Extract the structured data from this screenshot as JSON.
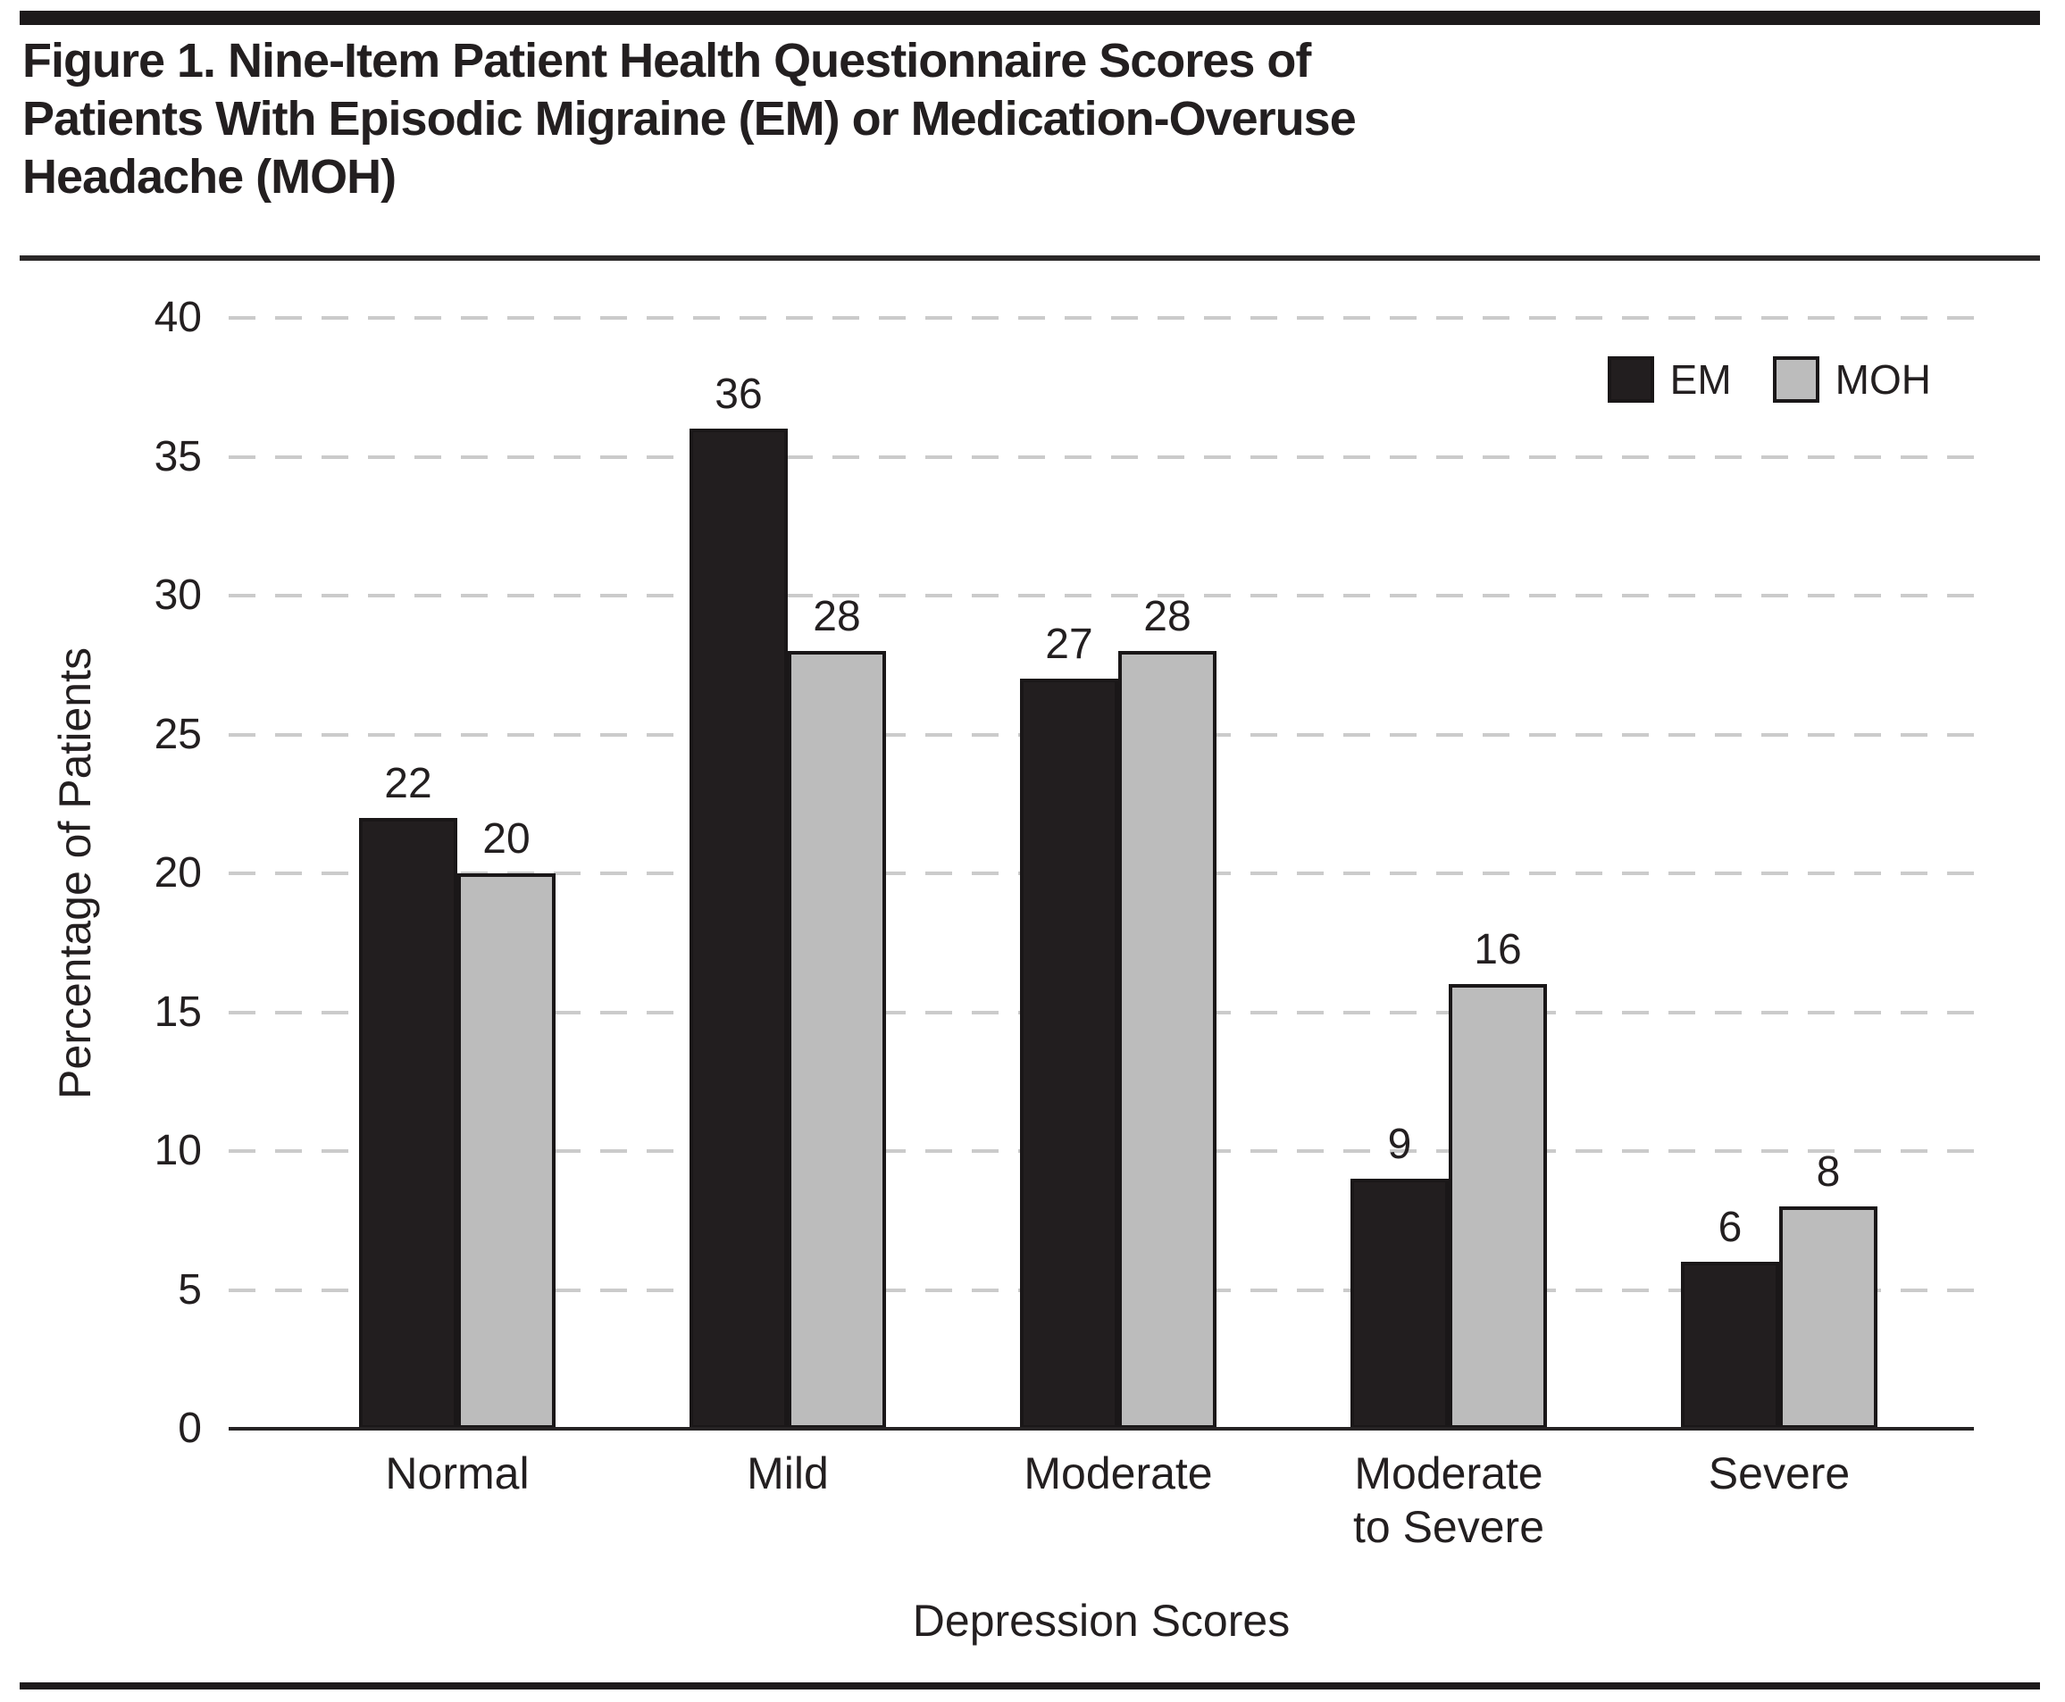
{
  "figure_title_lines": [
    "Figure 1. Nine-Item Patient Health Questionnaire Scores of",
    "Patients With Episodic Migraine (EM) or Medication-Overuse",
    "Headache (MOH)"
  ],
  "chart_data": {
    "type": "bar",
    "title": "Figure 1. Nine-Item Patient Health Questionnaire Scores of Patients With Episodic Migraine (EM) or Medication-Overuse Headache (MOH)",
    "categories": [
      "Normal",
      "Mild",
      "Moderate",
      "Moderate to Severe",
      "Severe"
    ],
    "series": [
      {
        "name": "EM",
        "values": [
          22,
          36,
          27,
          9,
          6
        ],
        "color": "#221e1f"
      },
      {
        "name": "MOH",
        "values": [
          20,
          28,
          28,
          16,
          8
        ],
        "color": "#bcbcbc"
      }
    ],
    "xlabel": "Depression Scores",
    "ylabel": "Percentage of Patients",
    "ylim": [
      0,
      40
    ],
    "yticks": [
      0,
      5,
      10,
      15,
      20,
      25,
      30,
      35,
      40
    ],
    "grid": "horizontal-dashed",
    "gridline_color": "#cbcbcb",
    "axis_color": "#262324",
    "bar_border_color": "#1a1718",
    "text_color": "#231f20",
    "legend_position": "top-right",
    "bar_value_labels": true
  }
}
